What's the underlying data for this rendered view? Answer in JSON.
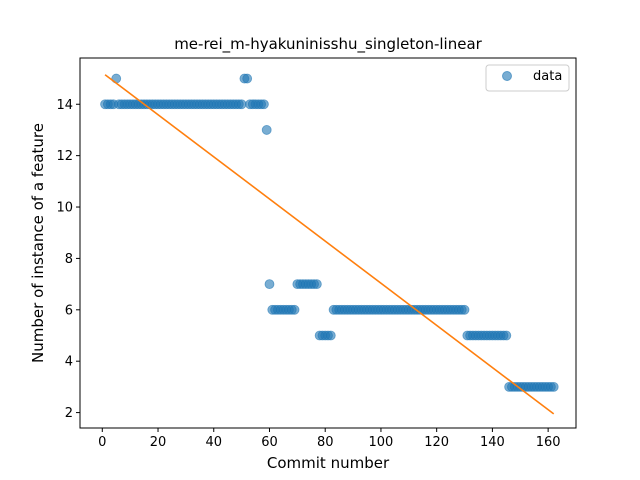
{
  "chart_data": {
    "type": "scatter",
    "title": "me-rei_m-hyakuninisshu_singleton-linear",
    "xlabel": "Commit number",
    "ylabel": "Number of instance of a feature",
    "xlim": [
      -8,
      170
    ],
    "ylim": [
      1.4,
      15.8
    ],
    "xticks": [
      0,
      20,
      40,
      60,
      80,
      100,
      120,
      140,
      160
    ],
    "yticks": [
      2,
      4,
      6,
      8,
      10,
      12,
      14
    ],
    "grid": false,
    "legend": {
      "position": "top-right",
      "entries": [
        "data"
      ]
    },
    "colors": {
      "points": "#1f77b4",
      "fit": "#ff7f0e"
    },
    "series": [
      {
        "name": "data",
        "style": "markers",
        "segments": [
          {
            "x_from": 1,
            "x_to": 4,
            "y": 14
          },
          {
            "x_from": 5,
            "x_to": 5,
            "y": 15
          },
          {
            "x_from": 6,
            "x_to": 50,
            "y": 14
          },
          {
            "x_from": 51,
            "x_to": 52,
            "y": 15
          },
          {
            "x_from": 53,
            "x_to": 58,
            "y": 14
          },
          {
            "x_from": 59,
            "x_to": 59,
            "y": 13
          },
          {
            "x_from": 60,
            "x_to": 60,
            "y": 7
          },
          {
            "x_from": 61,
            "x_to": 69,
            "y": 6
          },
          {
            "x_from": 70,
            "x_to": 77,
            "y": 7
          },
          {
            "x_from": 78,
            "x_to": 82,
            "y": 5
          },
          {
            "x_from": 83,
            "x_to": 130,
            "y": 6
          },
          {
            "x_from": 131,
            "x_to": 145,
            "y": 5
          },
          {
            "x_from": 146,
            "x_to": 162,
            "y": 3
          }
        ]
      },
      {
        "style": "line",
        "x": [
          1,
          162
        ],
        "y": [
          15.15,
          1.95
        ]
      }
    ]
  }
}
